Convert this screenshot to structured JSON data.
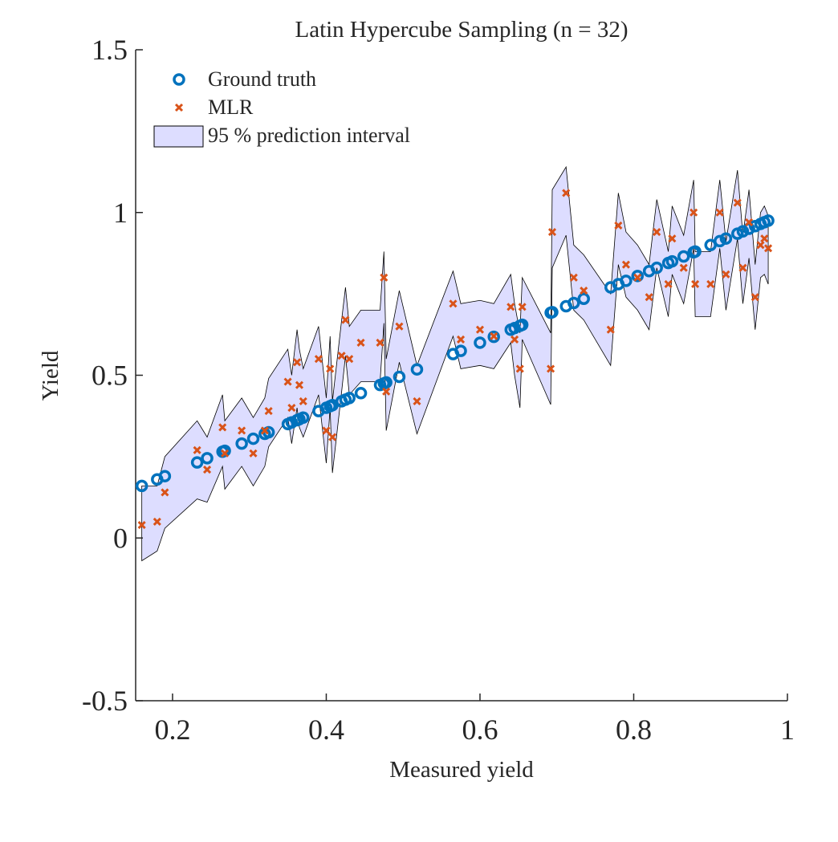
{
  "chart_data": {
    "type": "scatter",
    "title": "Latin Hypercube Sampling (n = 32)",
    "xlabel": "Measured yield",
    "ylabel": "Yield",
    "xlim": [
      0.152,
      1
    ],
    "ylim": [
      -0.5,
      1.5
    ],
    "xticks": [
      0.2,
      0.4,
      0.6,
      0.8,
      1
    ],
    "yticks": [
      -0.5,
      0,
      0.5,
      1,
      1.5
    ],
    "x": [
      0.16,
      0.18,
      0.19,
      0.232,
      0.245,
      0.265,
      0.268,
      0.29,
      0.305,
      0.32,
      0.325,
      0.35,
      0.355,
      0.362,
      0.365,
      0.37,
      0.39,
      0.4,
      0.405,
      0.408,
      0.42,
      0.425,
      0.43,
      0.445,
      0.47,
      0.475,
      0.478,
      0.495,
      0.518,
      0.565,
      0.575,
      0.6,
      0.618,
      0.64,
      0.645,
      0.652,
      0.655,
      0.692,
      0.694,
      0.712,
      0.722,
      0.735,
      0.77,
      0.78,
      0.79,
      0.805,
      0.82,
      0.83,
      0.845,
      0.85,
      0.865,
      0.878,
      0.88,
      0.9,
      0.912,
      0.92,
      0.935,
      0.942,
      0.95,
      0.958,
      0.965,
      0.97,
      0.975
    ],
    "band": {
      "name": "95 % prediction interval",
      "color": "#ddddff",
      "lower": [
        -0.07,
        -0.04,
        0.03,
        0.12,
        0.11,
        0.22,
        0.15,
        0.22,
        0.16,
        0.22,
        0.28,
        0.37,
        0.29,
        0.4,
        0.34,
        0.31,
        0.44,
        0.23,
        0.4,
        0.2,
        0.45,
        0.56,
        0.44,
        0.48,
        0.48,
        0.66,
        0.33,
        0.54,
        0.32,
        0.62,
        0.52,
        0.53,
        0.52,
        0.6,
        0.5,
        0.4,
        0.61,
        0.41,
        0.83,
        0.93,
        0.7,
        0.67,
        0.53,
        0.84,
        0.74,
        0.7,
        0.64,
        0.83,
        0.68,
        0.81,
        0.72,
        0.89,
        0.68,
        0.68,
        0.89,
        0.7,
        0.92,
        0.72,
        0.86,
        0.64,
        0.8,
        0.81,
        0.78
      ],
      "upper": [
        0.16,
        0.16,
        0.25,
        0.36,
        0.31,
        0.44,
        0.36,
        0.43,
        0.37,
        0.43,
        0.49,
        0.58,
        0.5,
        0.64,
        0.58,
        0.52,
        0.65,
        0.43,
        0.62,
        0.42,
        0.67,
        0.77,
        0.65,
        0.7,
        0.7,
        0.88,
        0.55,
        0.76,
        0.53,
        0.82,
        0.72,
        0.73,
        0.72,
        0.81,
        0.72,
        0.63,
        0.8,
        0.63,
        1.07,
        1.14,
        0.9,
        0.87,
        0.75,
        1.06,
        0.94,
        0.9,
        0.84,
        1.04,
        0.88,
        1.02,
        0.93,
        1.1,
        0.88,
        0.88,
        1.1,
        0.91,
        1.13,
        0.93,
        1.07,
        0.84,
        1.0,
        1.02,
        0.99
      ]
    },
    "series": [
      {
        "name": "Ground truth",
        "color": "#0072bd",
        "marker": "o",
        "values": [
          0.16,
          0.18,
          0.19,
          0.232,
          0.245,
          0.265,
          0.268,
          0.29,
          0.305,
          0.32,
          0.325,
          0.35,
          0.355,
          0.362,
          0.365,
          0.37,
          0.39,
          0.4,
          0.405,
          0.408,
          0.42,
          0.425,
          0.43,
          0.445,
          0.47,
          0.475,
          0.478,
          0.495,
          0.518,
          0.565,
          0.575,
          0.6,
          0.618,
          0.64,
          0.645,
          0.652,
          0.655,
          0.692,
          0.694,
          0.712,
          0.722,
          0.735,
          0.77,
          0.78,
          0.79,
          0.805,
          0.82,
          0.83,
          0.845,
          0.85,
          0.865,
          0.878,
          0.88,
          0.9,
          0.912,
          0.92,
          0.935,
          0.942,
          0.95,
          0.958,
          0.965,
          0.97,
          0.975
        ]
      },
      {
        "name": "MLR",
        "color": "#d95319",
        "marker": "x",
        "values": [
          0.04,
          0.05,
          0.14,
          0.27,
          0.21,
          0.34,
          0.26,
          0.33,
          0.26,
          0.33,
          0.39,
          0.48,
          0.4,
          0.54,
          0.47,
          0.42,
          0.55,
          0.33,
          0.52,
          0.31,
          0.56,
          0.67,
          0.55,
          0.6,
          0.6,
          0.8,
          0.45,
          0.65,
          0.42,
          0.72,
          0.61,
          0.64,
          0.62,
          0.71,
          0.61,
          0.52,
          0.71,
          0.52,
          0.94,
          1.06,
          0.8,
          0.76,
          0.64,
          0.96,
          0.84,
          0.8,
          0.74,
          0.94,
          0.78,
          0.92,
          0.83,
          1.0,
          0.78,
          0.78,
          1.0,
          0.81,
          1.03,
          0.83,
          0.97,
          0.74,
          0.9,
          0.92,
          0.89
        ]
      }
    ]
  }
}
